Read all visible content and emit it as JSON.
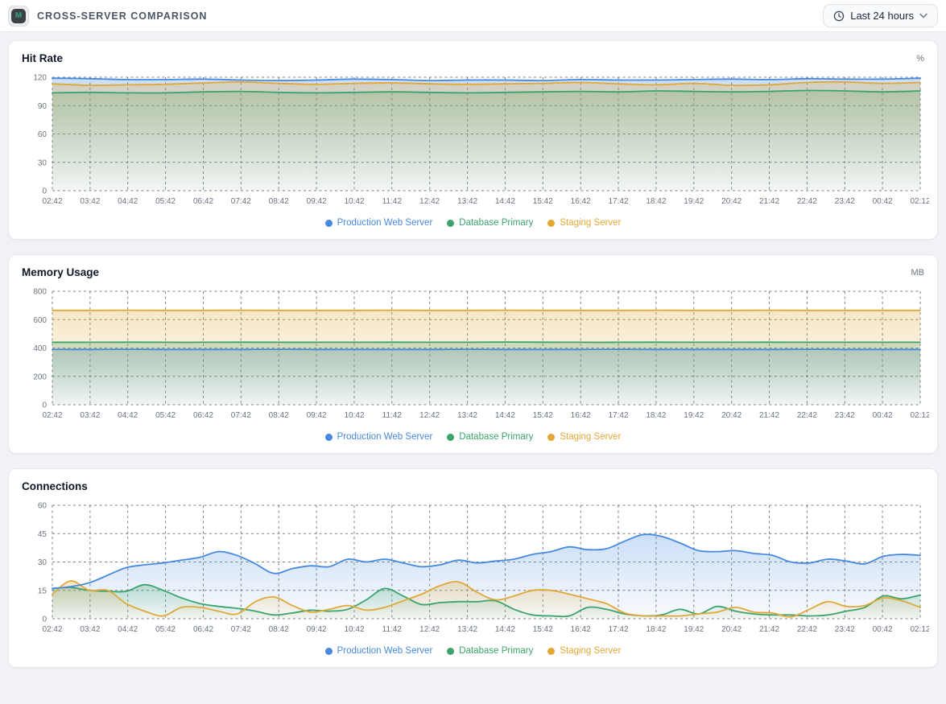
{
  "header": {
    "title": "CROSS-SERVER COMPARISON",
    "badge_letter": "M",
    "time_range": {
      "label": "Last 24 hours"
    }
  },
  "colors": {
    "production": "#4589e0",
    "database": "#3ba36c",
    "staging": "#e2a836",
    "grid": "#55575c",
    "axis_text": "#6b7280"
  },
  "chart_data": [
    {
      "type": "area",
      "title": "Hit Rate",
      "unit": "%",
      "ylim": [
        0,
        120
      ],
      "yticks": [
        0,
        30,
        60,
        90,
        120
      ],
      "grid": "dashed",
      "legend_position": "bottom",
      "x_labels": [
        "02:42",
        "03:42",
        "04:42",
        "05:42",
        "06:42",
        "07:42",
        "08:42",
        "09:42",
        "10:42",
        "11:42",
        "12:42",
        "13:42",
        "14:42",
        "15:42",
        "16:42",
        "17:42",
        "18:42",
        "19:42",
        "20:42",
        "21:42",
        "22:42",
        "23:42",
        "00:42",
        "02:12"
      ],
      "series": [
        {
          "name": "Production Web Server",
          "color": "#4589e0",
          "values": [
            119,
            118.5,
            117.5,
            117.5,
            118,
            117,
            116.5,
            117,
            118,
            117.5,
            116.5,
            117,
            117,
            116.5,
            117.5,
            117,
            117,
            117.5,
            118,
            117.5,
            118.5,
            118,
            118,
            119
          ]
        },
        {
          "name": "Database Primary",
          "color": "#3ba36c",
          "values": [
            103.5,
            104,
            103.5,
            103.5,
            104.5,
            105,
            104,
            103.5,
            104,
            104.5,
            104,
            103.5,
            104,
            104.5,
            105,
            104.5,
            105.5,
            105,
            104.5,
            105,
            106,
            105.5,
            104.5,
            105.5
          ]
        },
        {
          "name": "Staging Server",
          "color": "#e2a836",
          "values": [
            113,
            111.5,
            112,
            112.5,
            114,
            115,
            113.5,
            112.5,
            113.5,
            114,
            113,
            112.5,
            113,
            113.5,
            114.5,
            113,
            112,
            113.5,
            111.5,
            112,
            114.5,
            115,
            113.5,
            114.5
          ]
        }
      ]
    },
    {
      "type": "area",
      "title": "Memory Usage",
      "unit": "MB",
      "ylim": [
        0,
        800
      ],
      "yticks": [
        0,
        200,
        400,
        600,
        800
      ],
      "grid": "dashed",
      "legend_position": "bottom",
      "x_labels": [
        "02:42",
        "03:42",
        "04:42",
        "05:42",
        "06:42",
        "07:42",
        "08:42",
        "09:42",
        "10:42",
        "11:42",
        "12:42",
        "13:42",
        "14:42",
        "15:42",
        "16:42",
        "17:42",
        "18:42",
        "19:42",
        "20:42",
        "21:42",
        "22:42",
        "23:42",
        "00:42",
        "02:12"
      ],
      "series": [
        {
          "name": "Production Web Server",
          "color": "#4589e0",
          "values": [
            390,
            390,
            391,
            390,
            390,
            390,
            391,
            390,
            390,
            390,
            390,
            391,
            390,
            390,
            390,
            391,
            390,
            390,
            390,
            390,
            391,
            390,
            390,
            390
          ]
        },
        {
          "name": "Database Primary",
          "color": "#3ba36c",
          "values": [
            440,
            440,
            441,
            440,
            440,
            441,
            440,
            440,
            440,
            441,
            440,
            440,
            442,
            441,
            440,
            440,
            441,
            440,
            440,
            441,
            440,
            440,
            440,
            440
          ]
        },
        {
          "name": "Staging Server",
          "color": "#e2a836",
          "values": [
            665,
            665,
            666,
            665,
            665,
            666,
            665,
            665,
            665,
            666,
            665,
            665,
            666,
            665,
            665,
            665,
            666,
            665,
            665,
            666,
            665,
            665,
            665,
            665
          ]
        }
      ]
    },
    {
      "type": "area",
      "title": "Connections",
      "unit": "",
      "ylim": [
        0,
        60
      ],
      "yticks": [
        0,
        15,
        30,
        45,
        60
      ],
      "grid": "dashed",
      "legend_position": "bottom",
      "x_labels": [
        "02:42",
        "03:42",
        "04:42",
        "05:42",
        "06:42",
        "07:42",
        "08:42",
        "09:42",
        "10:42",
        "11:42",
        "12:42",
        "13:42",
        "14:42",
        "15:42",
        "16:42",
        "17:42",
        "18:42",
        "19:42",
        "20:42",
        "21:42",
        "22:42",
        "23:42",
        "00:42",
        "02:12"
      ],
      "series": [
        {
          "name": "Production Web Server",
          "color": "#4589e0",
          "values": [
            16,
            17,
            19,
            23,
            27,
            28.5,
            29.5,
            31,
            32.5,
            35.5,
            33.5,
            29,
            24,
            26.5,
            28,
            27.5,
            31.5,
            30,
            31.5,
            29.5,
            27.5,
            28.5,
            31,
            29.5,
            30.5,
            31.5,
            34,
            35.5,
            38,
            36.5,
            37,
            41,
            44.5,
            43.5,
            40,
            36,
            35.5,
            36,
            34.5,
            33.5,
            30,
            29.5,
            31.5,
            30.5,
            29,
            33,
            34,
            33.5
          ]
        },
        {
          "name": "Database Primary",
          "color": "#3ba36c",
          "values": [
            16,
            16.5,
            15,
            14.5,
            14.5,
            18,
            15,
            11,
            8,
            6.5,
            5.5,
            4,
            2,
            3,
            4.5,
            4,
            5,
            10,
            16,
            12,
            7.5,
            8.5,
            9,
            9,
            9.5,
            5,
            2,
            1.5,
            1.5,
            6,
            5,
            2.5,
            1.5,
            2,
            5,
            2.5,
            6.5,
            4,
            2.5,
            2,
            2,
            1.5,
            2,
            4,
            6,
            12,
            10.5,
            12.5
          ]
        },
        {
          "name": "Staging Server",
          "color": "#e2a836",
          "values": [
            13,
            20,
            15,
            15,
            8,
            4,
            1.5,
            6,
            6,
            4,
            2.5,
            9,
            11.5,
            7,
            3.5,
            5,
            7,
            4.5,
            6,
            9.5,
            13,
            17.5,
            19.5,
            14,
            10,
            12,
            15,
            15,
            13,
            10.5,
            8,
            3,
            1.5,
            1.5,
            1.5,
            2.5,
            3.5,
            6,
            3.5,
            3,
            1,
            5,
            9,
            6.5,
            7,
            11,
            9.5,
            6
          ]
        }
      ]
    }
  ]
}
